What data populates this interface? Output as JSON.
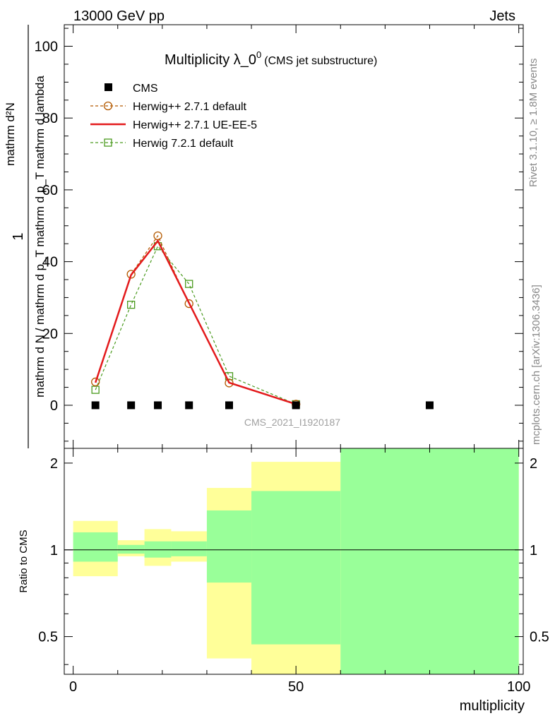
{
  "header": {
    "left_label": "13000 GeV pp",
    "right_label": "Jets",
    "side_label_top": "Rivet 3.1.10, ≥ 1.8M events",
    "side_label_bottom": "mcplots.cern.ch [arXiv:1306.3436]",
    "watermark": "CMS_2021_I1920187"
  },
  "chart_data": [
    {
      "type": "line",
      "title_main": "Multiplicity λ_0",
      "title_sup": "0",
      "title_sub": "(CMS jet substructure)",
      "ylabel_numerator": "1",
      "ylabel_numerator2": "mathrm d²N",
      "ylabel_denominator": "mathrm d N / mathrm d p_T mathrm d p_T mathrm d lambda",
      "xlim": [
        -2,
        101
      ],
      "ylim": [
        -12,
        106
      ],
      "yticks": [
        0,
        20,
        40,
        60,
        80,
        100
      ],
      "legend_position": "top-left",
      "series": [
        {
          "name": "CMS",
          "color": "#000000",
          "marker": "square-filled",
          "x": [
            5,
            13,
            19,
            26,
            35,
            50,
            80
          ],
          "y": [
            0,
            0,
            0,
            0,
            0,
            0,
            0
          ]
        },
        {
          "name": "Herwig++ 2.7.1 default",
          "color": "#b35900",
          "marker": "circle-open",
          "dash": true,
          "x": [
            5,
            13,
            19,
            26,
            35,
            50
          ],
          "y": [
            6.5,
            36.5,
            47.2,
            28.3,
            6.2,
            0.3
          ]
        },
        {
          "name": "Herwig++ 2.7.1 UE-EE-5",
          "color": "#e31a1c",
          "marker": "none",
          "dash": false,
          "x": [
            5,
            13,
            19,
            26,
            35,
            50
          ],
          "y": [
            6.3,
            36.3,
            45.8,
            28.5,
            6.3,
            0.3
          ]
        },
        {
          "name": "Herwig 7.2.1 default",
          "color": "#4a9a1e",
          "marker": "square-open",
          "dash": true,
          "x": [
            5,
            13,
            19,
            26,
            35,
            50
          ],
          "y": [
            4.3,
            28.0,
            44.3,
            33.8,
            8.1,
            0.3
          ]
        }
      ]
    },
    {
      "type": "area",
      "ylabel": "Ratio to CMS",
      "xlabel": "multiplicity",
      "xlim": [
        -2,
        101
      ],
      "ylim": [
        0.37,
        2.25
      ],
      "yscale": "log",
      "yticks": [
        0.5,
        1,
        2
      ],
      "ytick_labels": [
        "0.5",
        "1",
        "2"
      ],
      "xticks": [
        0,
        50,
        100
      ],
      "xtick_labels": [
        "0",
        "50",
        "100"
      ],
      "reference_line": 1,
      "bands": [
        {
          "x_low": 0,
          "x_high": 10,
          "yellow": [
            0.81,
            1.26
          ],
          "green": [
            0.91,
            1.15
          ]
        },
        {
          "x_low": 10,
          "x_high": 16,
          "yellow": [
            0.95,
            1.08
          ],
          "green": [
            0.97,
            1.04
          ]
        },
        {
          "x_low": 16,
          "x_high": 22,
          "yellow": [
            0.88,
            1.18
          ],
          "green": [
            0.94,
            1.07
          ]
        },
        {
          "x_low": 22,
          "x_high": 30,
          "yellow": [
            0.91,
            1.16
          ],
          "green": [
            0.95,
            1.07
          ]
        },
        {
          "x_low": 30,
          "x_high": 40,
          "yellow": [
            0.42,
            1.64
          ],
          "green": [
            0.77,
            1.37
          ]
        },
        {
          "x_low": 40,
          "x_high": 60,
          "yellow": [
            0.37,
            2.02
          ],
          "green": [
            0.47,
            1.6
          ]
        },
        {
          "x_low": 60,
          "x_high": 100,
          "yellow": [
            0.37,
            2.25
          ],
          "green": [
            0.37,
            2.25
          ]
        }
      ],
      "band_colors": {
        "yellow": "#ffff99",
        "green": "#99ff99"
      }
    }
  ]
}
